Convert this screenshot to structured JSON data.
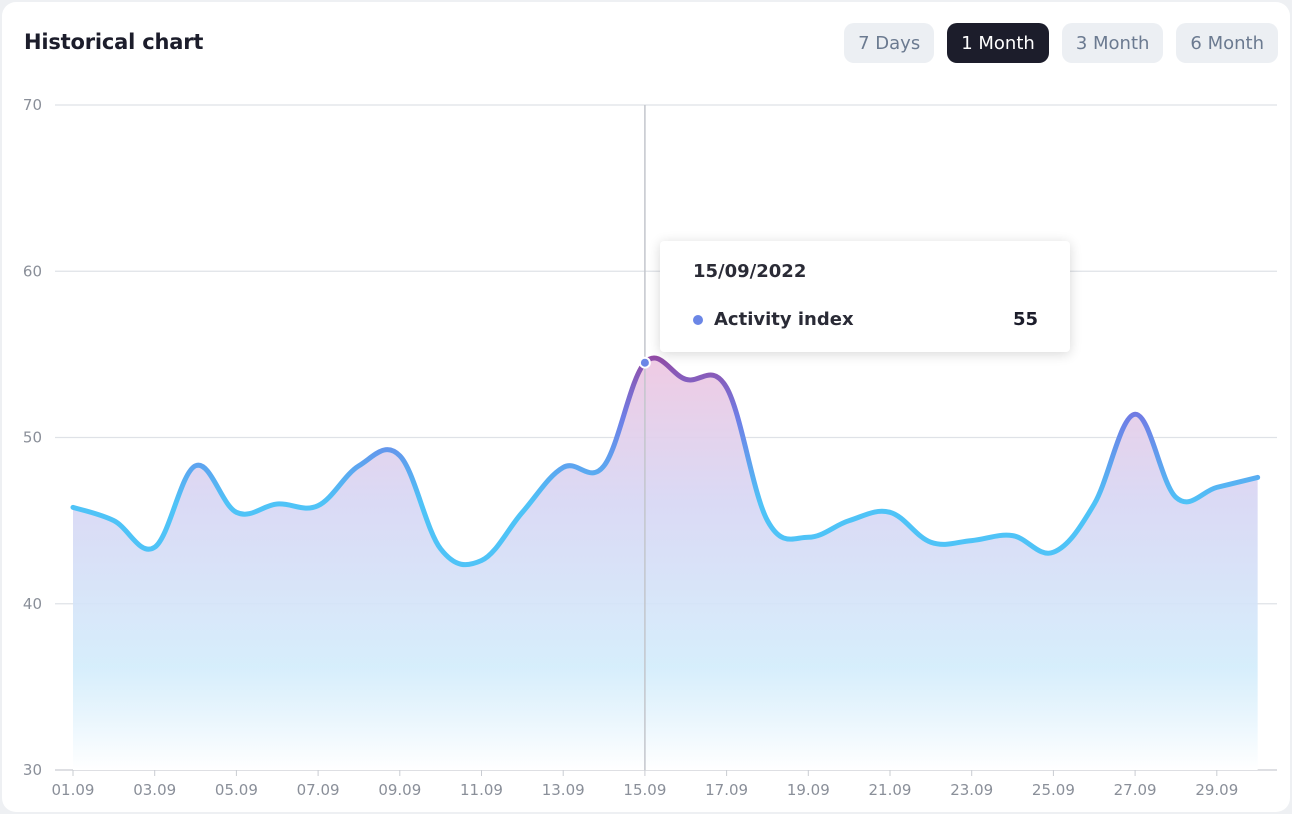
{
  "header": {
    "title": "Historical chart",
    "ranges": [
      {
        "label": "7 Days",
        "active": false
      },
      {
        "label": "1 Month",
        "active": true
      },
      {
        "label": "3 Month",
        "active": false
      },
      {
        "label": "6 Month",
        "active": false
      }
    ]
  },
  "tooltip": {
    "date": "15/09/2022",
    "series_label": "Activity index",
    "value": "55"
  },
  "colors": {
    "line_low": "#4fc3f7",
    "line_mid": "#6f7ee6",
    "line_high": "#b0206f",
    "tooltip_dot": "#6b86e6",
    "active_button": "#1c1d2b"
  },
  "chart_data": {
    "type": "area",
    "x": [
      "01.09",
      "02.09",
      "03.09",
      "04.09",
      "05.09",
      "06.09",
      "07.09",
      "08.09",
      "09.09",
      "10.09",
      "11.09",
      "12.09",
      "13.09",
      "14.09",
      "15.09",
      "16.09",
      "17.09",
      "18.09",
      "19.09",
      "20.09",
      "21.09",
      "22.09",
      "23.09",
      "24.09",
      "25.09",
      "26.09",
      "27.09",
      "28.09",
      "29.09",
      "30.09"
    ],
    "x_tick_labels": [
      "01.09",
      "03.09",
      "05.09",
      "07.09",
      "09.09",
      "11.09",
      "13.09",
      "15.09",
      "17.09",
      "19.09",
      "21.09",
      "23.09",
      "25.09",
      "27.09",
      "29.09"
    ],
    "series": [
      {
        "name": "Activity index",
        "values": [
          45.8,
          45.0,
          43.4,
          48.3,
          45.5,
          46.0,
          45.9,
          48.3,
          48.9,
          43.3,
          42.6,
          45.5,
          48.2,
          48.3,
          54.5,
          53.5,
          53.0,
          45.0,
          44.0,
          45.0,
          45.5,
          43.7,
          43.8,
          44.1,
          43.1,
          46.0,
          51.4,
          46.4,
          47.0,
          47.6
        ]
      }
    ],
    "ylim": [
      30,
      70
    ],
    "y_ticks": [
      30,
      40,
      50,
      60,
      70
    ],
    "highlighted_x": "15.09",
    "grid": true
  }
}
